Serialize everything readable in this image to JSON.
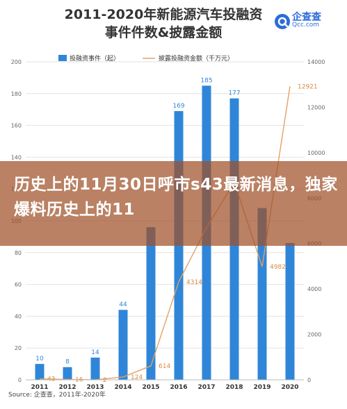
{
  "chart_data": {
    "type": "bar+line",
    "title_line1": "2011-2020年新能源汽车投融资",
    "title_line2": "事件件数&披露金额",
    "categories": [
      "2011",
      "2012",
      "2013",
      "2014",
      "2015",
      "2016",
      "2017",
      "2018",
      "2019",
      "2020"
    ],
    "series": [
      {
        "name": "投融资事件（起）",
        "type": "bar",
        "axis": "left",
        "color": "#2f86d8",
        "values": [
          10,
          8,
          14,
          44,
          96,
          169,
          185,
          177,
          108,
          86
        ]
      },
      {
        "name": "披露投融资金额（千万元）",
        "type": "line",
        "axis": "right",
        "color": "#e3a163",
        "values": [
          43,
          16,
          2,
          124,
          614,
          4314,
          6700,
          8700,
          4982,
          12921
        ]
      }
    ],
    "bar_labels": [
      "10",
      "8",
      "14",
      "44",
      "",
      "169",
      "185",
      "177",
      "",
      ""
    ],
    "line_labels": [
      "43",
      "16",
      "2",
      "124",
      "614",
      "4314",
      "",
      "",
      "4982",
      "12921"
    ],
    "left_axis": {
      "ylim": [
        0,
        200
      ],
      "ticks": [
        "0",
        "20",
        "40",
        "60",
        "80",
        "100",
        "120",
        "140",
        "160",
        "180",
        "200"
      ]
    },
    "right_axis": {
      "ylim": [
        0,
        14000
      ],
      "ticks": [
        "0",
        "2000",
        "4000",
        "6000",
        "8000",
        "10000",
        "12000",
        "14000"
      ]
    },
    "grid": true,
    "legend_position": "top"
  },
  "brand": {
    "name": "企查查",
    "url": "Qcc.com"
  },
  "source": "Source: 企查查，2011年-2020年",
  "banner": {
    "text": "历史上的11月30日呼市s43最新消息，独家爆料历史上的11"
  }
}
